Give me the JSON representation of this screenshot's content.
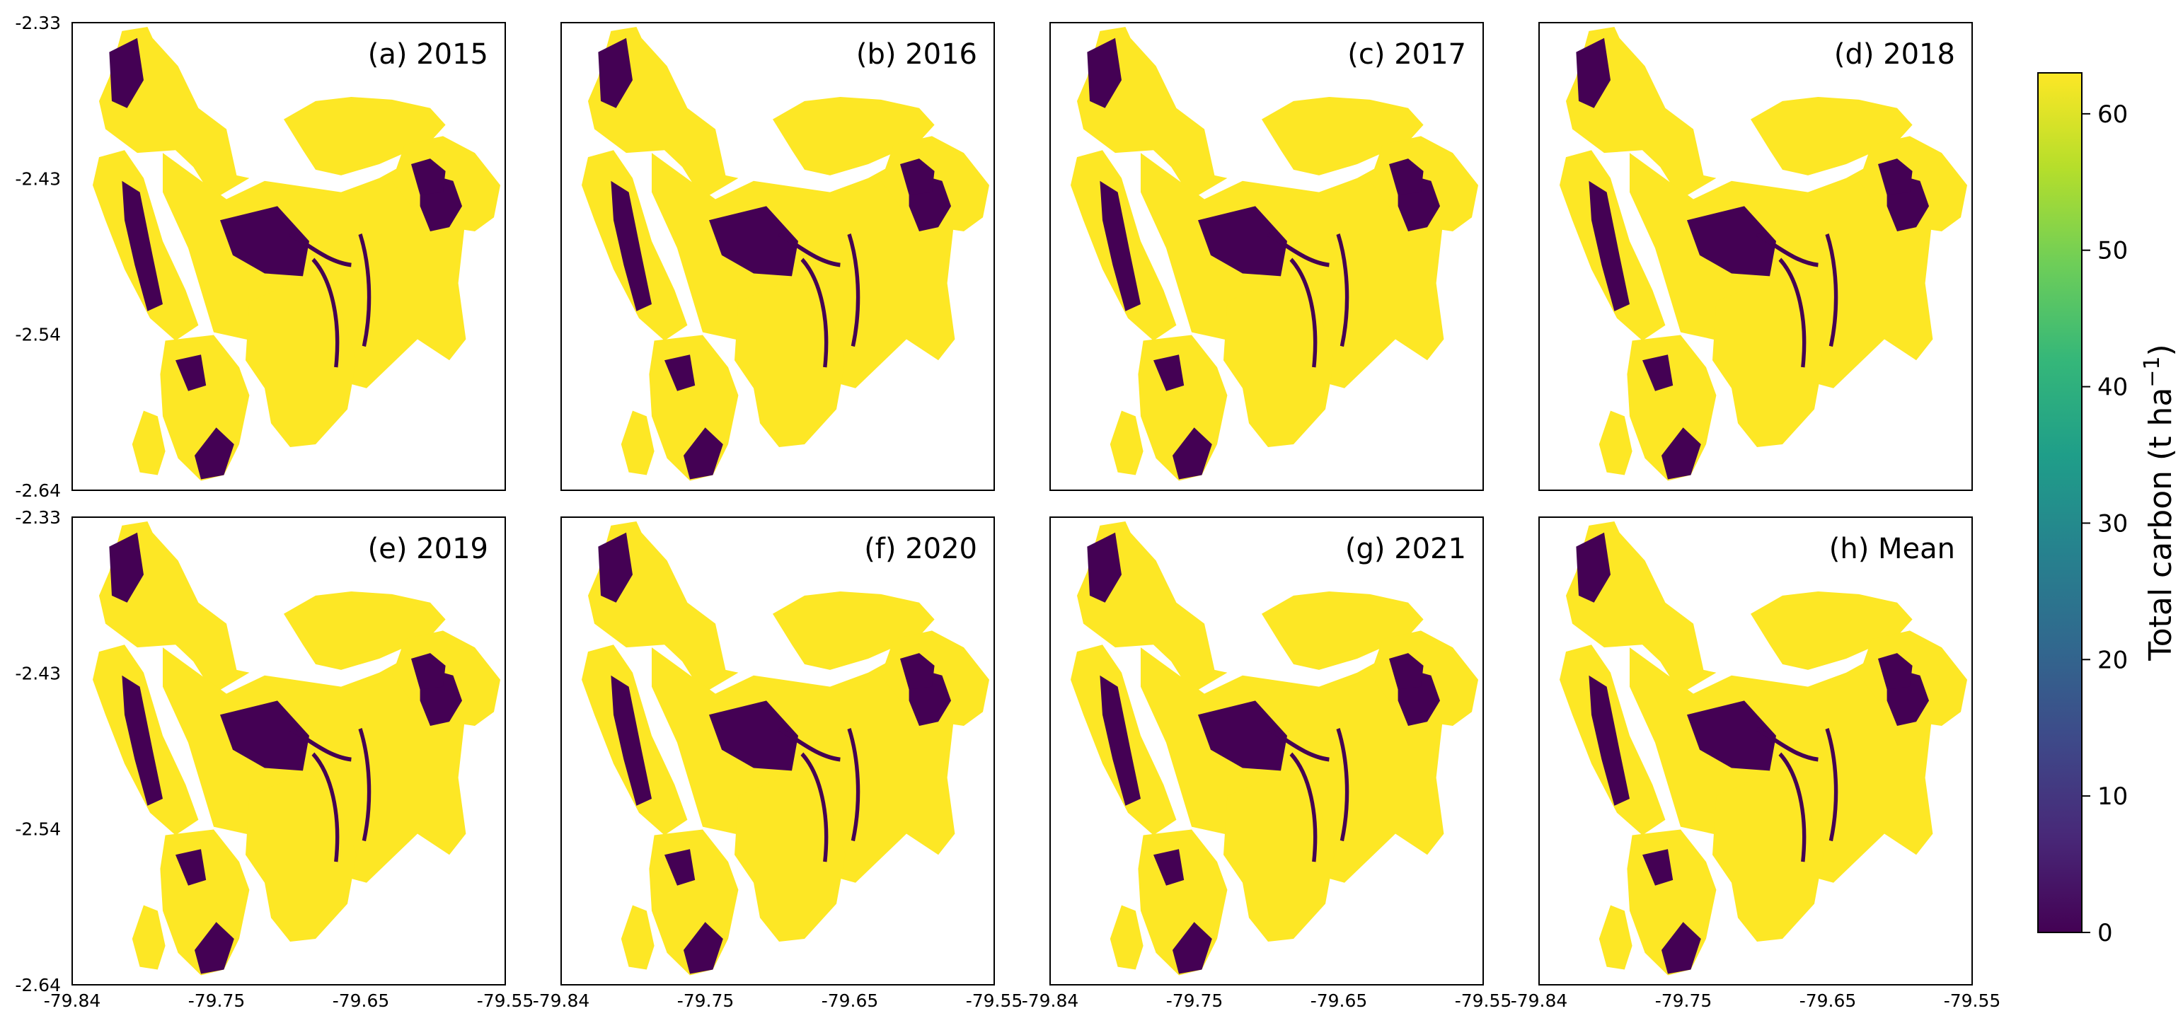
{
  "figure": {
    "colormap": "viridis",
    "colormap_stops": [
      "#440154",
      "#482878",
      "#3e4989",
      "#31688e",
      "#26828e",
      "#1f9e89",
      "#35b779",
      "#6ece58",
      "#b5de2b",
      "#fde725"
    ],
    "land_color": "#fde725",
    "low_color": "#440154",
    "panels": [
      {
        "id": "a",
        "title": "(a) 2015"
      },
      {
        "id": "b",
        "title": "(b) 2016"
      },
      {
        "id": "c",
        "title": "(c) 2017"
      },
      {
        "id": "d",
        "title": "(d) 2018"
      },
      {
        "id": "e",
        "title": "(e) 2019"
      },
      {
        "id": "f",
        "title": "(f) 2020"
      },
      {
        "id": "g",
        "title": "(g) 2021"
      },
      {
        "id": "h",
        "title": "(h) Mean"
      }
    ],
    "y_ticks": [
      "-2.33",
      "-2.43",
      "-2.54",
      "-2.64"
    ],
    "x_ticks": [
      "-79.84",
      "-79.75",
      "-79.65",
      "-79.55"
    ],
    "colorbar": {
      "label": "Total carbon (t ha",
      "label_superscript": "−1",
      "label_suffix": ")",
      "min": 0,
      "max": 63,
      "ticks": [
        "0",
        "10",
        "20",
        "30",
        "40",
        "50",
        "60"
      ]
    }
  }
}
